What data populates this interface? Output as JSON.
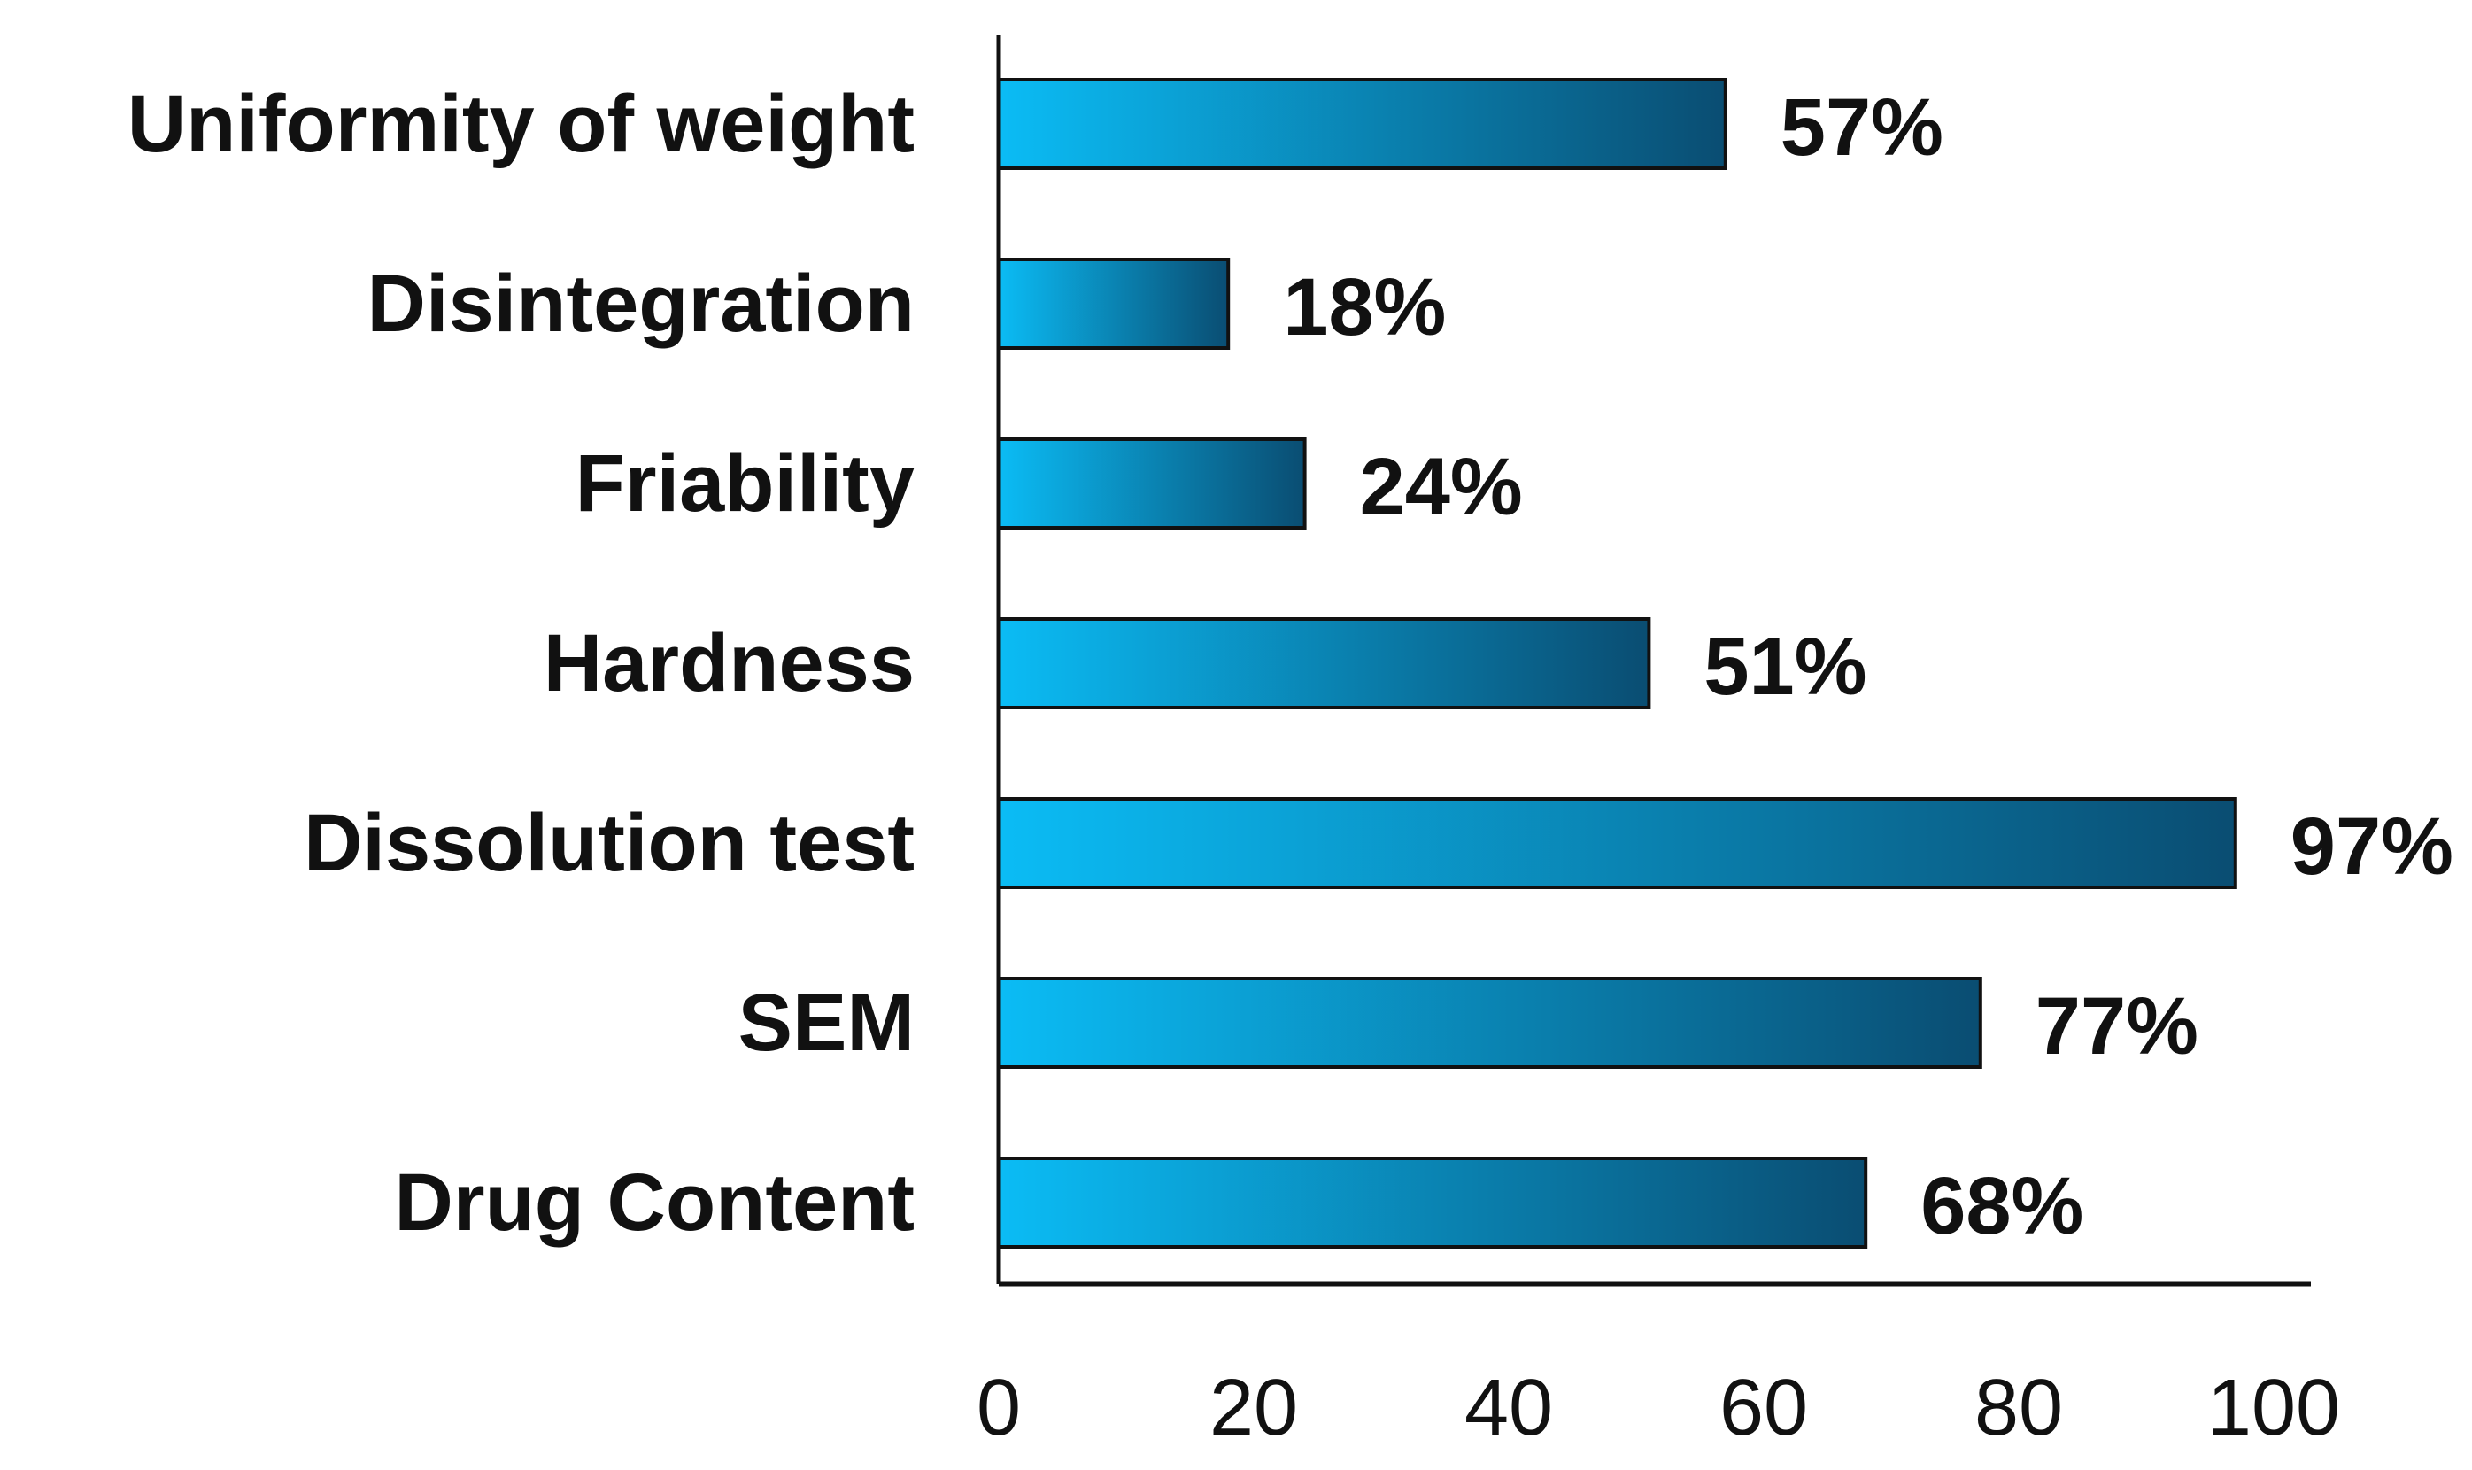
{
  "chart_data": {
    "type": "bar",
    "orientation": "horizontal",
    "title": "",
    "xlabel": "",
    "ylabel": "",
    "categories": [
      "Uniformity of weight",
      "Disintegration",
      "Friability",
      "Hardness",
      "Dissolution test",
      "SEM",
      "Drug Content"
    ],
    "values": [
      57,
      18,
      24,
      51,
      97,
      77,
      68
    ],
    "value_labels": [
      "57%",
      "18%",
      "24%",
      "51%",
      "97%",
      "77%",
      "68%"
    ],
    "xlim": [
      0,
      100
    ],
    "xticks": [
      0,
      20,
      40,
      60,
      80,
      100
    ],
    "xtick_labels": [
      "0",
      "20",
      "40",
      "60",
      "80",
      "100"
    ],
    "grid": false,
    "legend": "none",
    "bar_gradient": {
      "start": "#0bbcf5",
      "end": "#0a4d72"
    },
    "bar_outline": "#111111",
    "axis_color": "#111111"
  }
}
